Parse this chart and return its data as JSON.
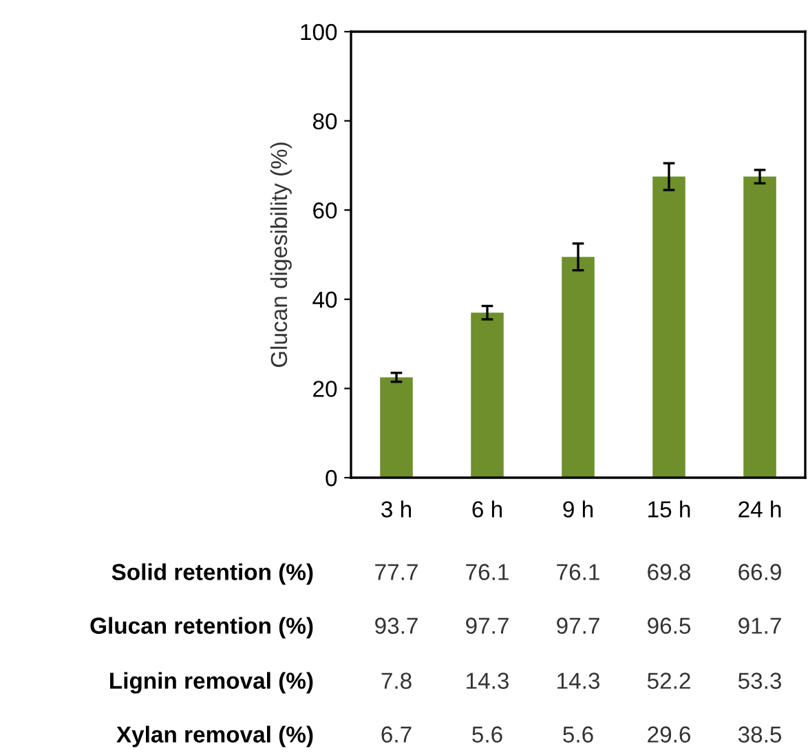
{
  "chart_data": {
    "type": "bar",
    "ylabel": "Glucan digesibility (%)",
    "categories": [
      "3 h",
      "6 h",
      "9 h",
      "15 h",
      "24 h"
    ],
    "values": [
      22.5,
      37,
      49.5,
      67.5,
      67.5
    ],
    "errors": [
      1,
      1.5,
      3,
      3,
      1.5
    ],
    "color": "#6e8f2c",
    "ylim": [
      0,
      100
    ],
    "yticks": [
      0,
      20,
      40,
      60,
      80,
      100
    ],
    "grid": false,
    "annotations": [
      "Solid retention (%)",
      "77.7",
      "76.1",
      "76.1",
      "69.8",
      "66.9",
      "Glucan retention (%)",
      "93.7",
      "97.7",
      "97.7",
      "96.5",
      "91.7",
      "Lignin removal (%)",
      "7.8",
      "14.3",
      "14.3",
      "52.2",
      "53.3",
      "Xylan removal (%)",
      "6.7",
      "5.6",
      "5.6",
      "29.6",
      "38.5"
    ]
  }
}
